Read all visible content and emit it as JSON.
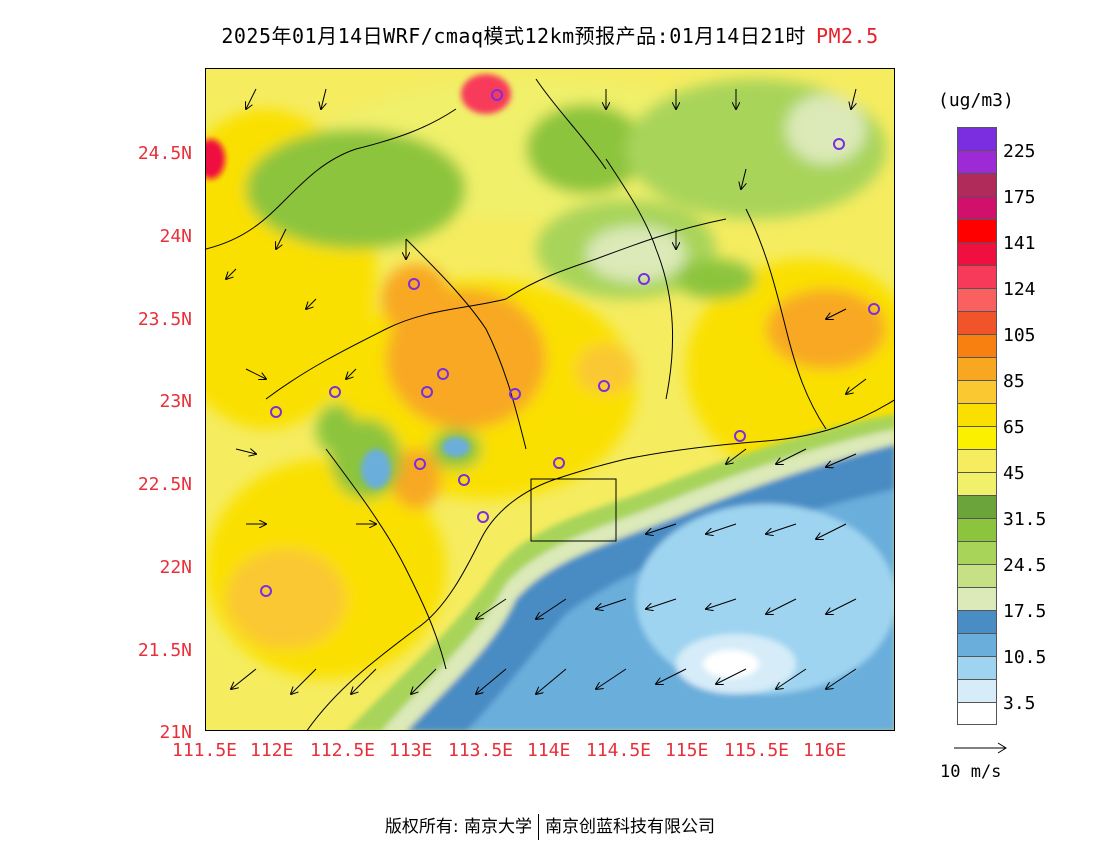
{
  "title": {
    "text": "2025年01月14日WRF/cmaq模式12km预报产品:01月14日21时",
    "pollutant": "PM2.5",
    "pollutant_color": "#e8202a"
  },
  "map": {
    "lat_ticks": [
      "24.5N",
      "24N",
      "23.5N",
      "23N",
      "22.5N",
      "22N",
      "21.5N",
      "21N"
    ],
    "lon_ticks": [
      "111.5E",
      "112E",
      "112.5E",
      "113E",
      "113.5E",
      "114E",
      "114.5E",
      "115E",
      "115.5E",
      "116E"
    ],
    "tick_color": "#e8303a"
  },
  "legend": {
    "unit": "(ug/m3)",
    "colors": [
      "#7b2ee0",
      "#9c2ad6",
      "#b02a5a",
      "#d0106a",
      "#ff0000",
      "#f01040",
      "#f83a5a",
      "#fa6060",
      "#f05428",
      "#f88010",
      "#f8a820",
      "#fac830",
      "#fae000",
      "#faf000",
      "#f5ec60",
      "#f0f06a",
      "#6aa43a",
      "#8cc43e",
      "#a8d45a",
      "#c6e084",
      "#dce9b8",
      "#4a8cc4",
      "#6aaedc",
      "#9ed4f0",
      "#d6ecf8",
      "#ffffff"
    ],
    "labels": [
      "225",
      "175",
      "141",
      "124",
      "105",
      "85",
      "65",
      "45",
      "31.5",
      "24.5",
      "17.5",
      "10.5",
      "3.5"
    ],
    "wind_ref": "10 m/s"
  },
  "footer": {
    "copyright": "版权所有: 南京大学",
    "company": "南京创蓝科技有限公司"
  }
}
